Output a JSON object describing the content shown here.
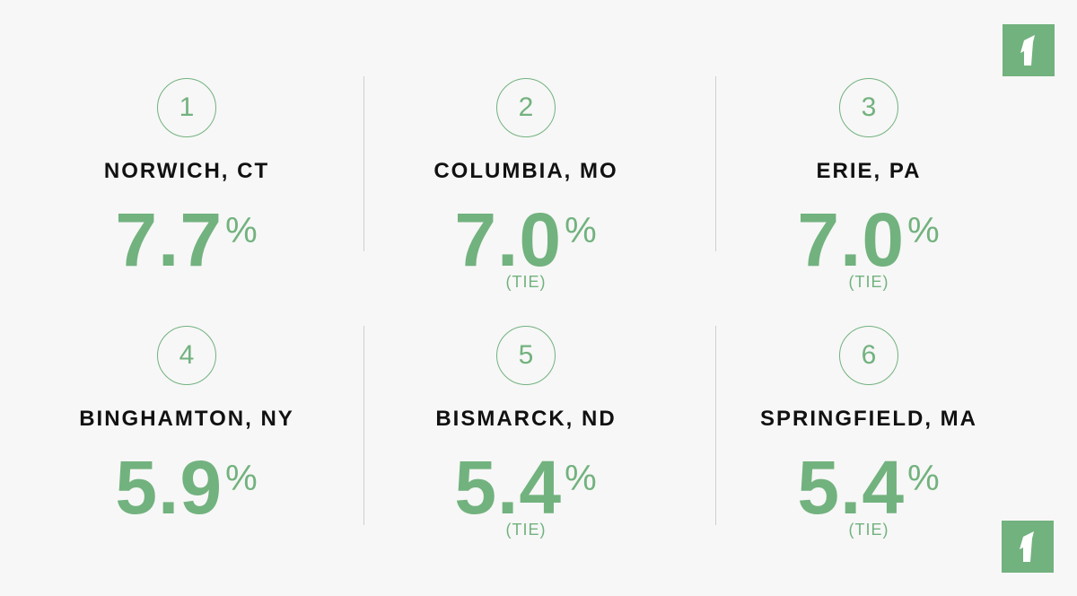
{
  "items": [
    {
      "rank": 1,
      "city": "NORWICH, CT",
      "value": "7.7",
      "unit": "%"
    },
    {
      "rank": 2,
      "city": "COLUMBIA, MO",
      "value": "7.0",
      "unit": "%",
      "note": "(TIE)"
    },
    {
      "rank": 3,
      "city": "ERIE, PA",
      "value": "7.0",
      "unit": "%",
      "note": "(TIE)"
    },
    {
      "rank": 4,
      "city": "BINGHAMTON, NY",
      "value": "5.9",
      "unit": "%"
    },
    {
      "rank": 5,
      "city": "BISMARCK, ND",
      "value": "5.4",
      "unit": "%",
      "note": "(TIE)"
    },
    {
      "rank": 6,
      "city": "SPRINGFIELD, MA",
      "value": "5.4",
      "unit": "%",
      "note": "(TIE)"
    }
  ]
}
